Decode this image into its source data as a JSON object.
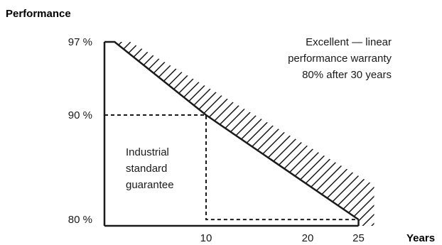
{
  "chart_data": {
    "type": "line",
    "ylabel": "Performance",
    "xlabel": "Years",
    "x_ticks": [
      "10",
      "20",
      "25"
    ],
    "y_ticks": [
      "97 %",
      "90 %",
      "80 %"
    ],
    "series": [
      {
        "name": "Excellent — linear performance warranty 80% after 30 years",
        "points": [
          [
            0,
            97
          ],
          [
            1,
            97
          ],
          [
            10,
            90
          ],
          [
            25,
            80
          ]
        ]
      },
      {
        "name": "Industrial standard guarantee",
        "points": [
          [
            0,
            90
          ],
          [
            10,
            90
          ],
          [
            10,
            80
          ],
          [
            25,
            80
          ]
        ]
      }
    ],
    "annotations": {
      "linear_lines": [
        "Excellent — linear",
        "performance warranty",
        "80% after 30 years"
      ],
      "industrial_lines": [
        "Industrial",
        "standard",
        "guarantee"
      ]
    },
    "hatched_region": "difference between linear warranty and industrial standard guarantee",
    "grid": false
  }
}
